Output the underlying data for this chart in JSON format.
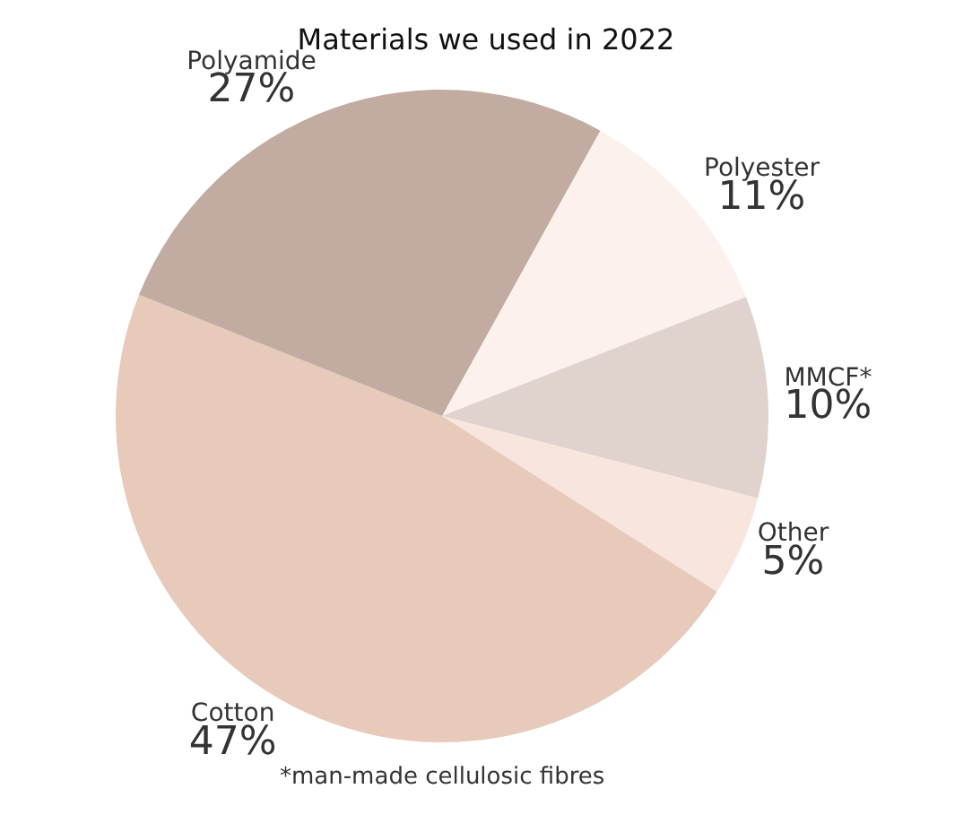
{
  "chart_data": {
    "type": "pie",
    "title": "Materials we used in 2022",
    "categories": [
      "Polyester",
      "MMCF*",
      "Other",
      "Cotton",
      "Polyamide"
    ],
    "values": [
      11,
      10,
      5,
      47,
      27
    ],
    "value_labels": [
      "11%",
      "10%",
      "5%",
      "47%",
      "27%"
    ],
    "colors": [
      "#fcf1ec",
      "#e0d2cc",
      "#f8e6de",
      "#e8cabb",
      "#c2aba0"
    ],
    "annotations": [
      "*man-made cellulosic fibres"
    ],
    "legend": false
  }
}
